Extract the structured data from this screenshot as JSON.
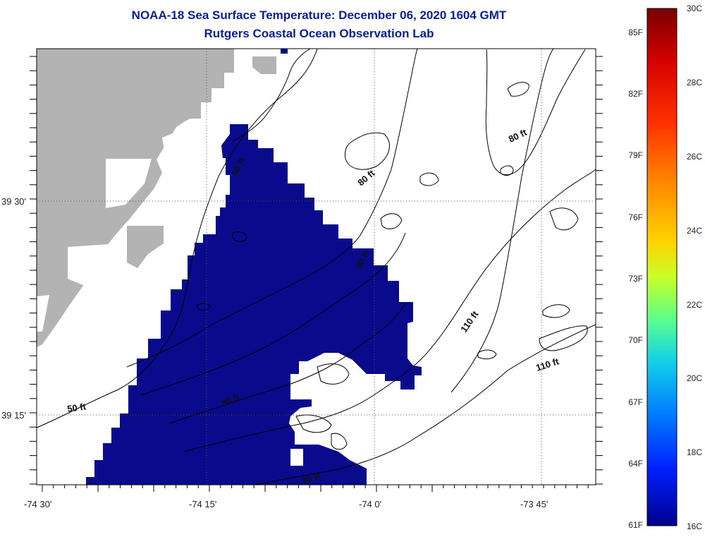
{
  "title_line1": "NOAA-18 Sea Surface Temperature:  December 06, 2020 1604 GMT",
  "title_line2": "Rutgers Coastal Ocean Observation Lab",
  "axes": {
    "x_ticks": [
      "-74 30'",
      "-74 15'",
      "-74 0'",
      "-73 45'"
    ],
    "y_ticks": [
      "39 30'",
      "39 15'"
    ]
  },
  "contour_labels": [
    "50 ft",
    "80 ft",
    "80 ft",
    "80 ft",
    "110 ft",
    "110 ft",
    "50 ft",
    "80 ft",
    "80 ft"
  ],
  "colorbar": {
    "fahrenheit": [
      "85F",
      "82F",
      "79F",
      "76F",
      "73F",
      "70F",
      "67F",
      "64F",
      "61F"
    ],
    "celsius": [
      "30C",
      "28C",
      "26C",
      "24C",
      "22C",
      "20C",
      "18C",
      "16C"
    ],
    "colors": [
      "#7a0000",
      "#d40000",
      "#ff3000",
      "#ff8a00",
      "#ffd200",
      "#c8ff28",
      "#5cff8c",
      "#14d2e6",
      "#0080ff",
      "#0020ff",
      "#00008c"
    ]
  },
  "colors": {
    "sst_blue": "#0a0a8c",
    "land": "#b3b3b3",
    "title": "#0a1f96"
  }
}
